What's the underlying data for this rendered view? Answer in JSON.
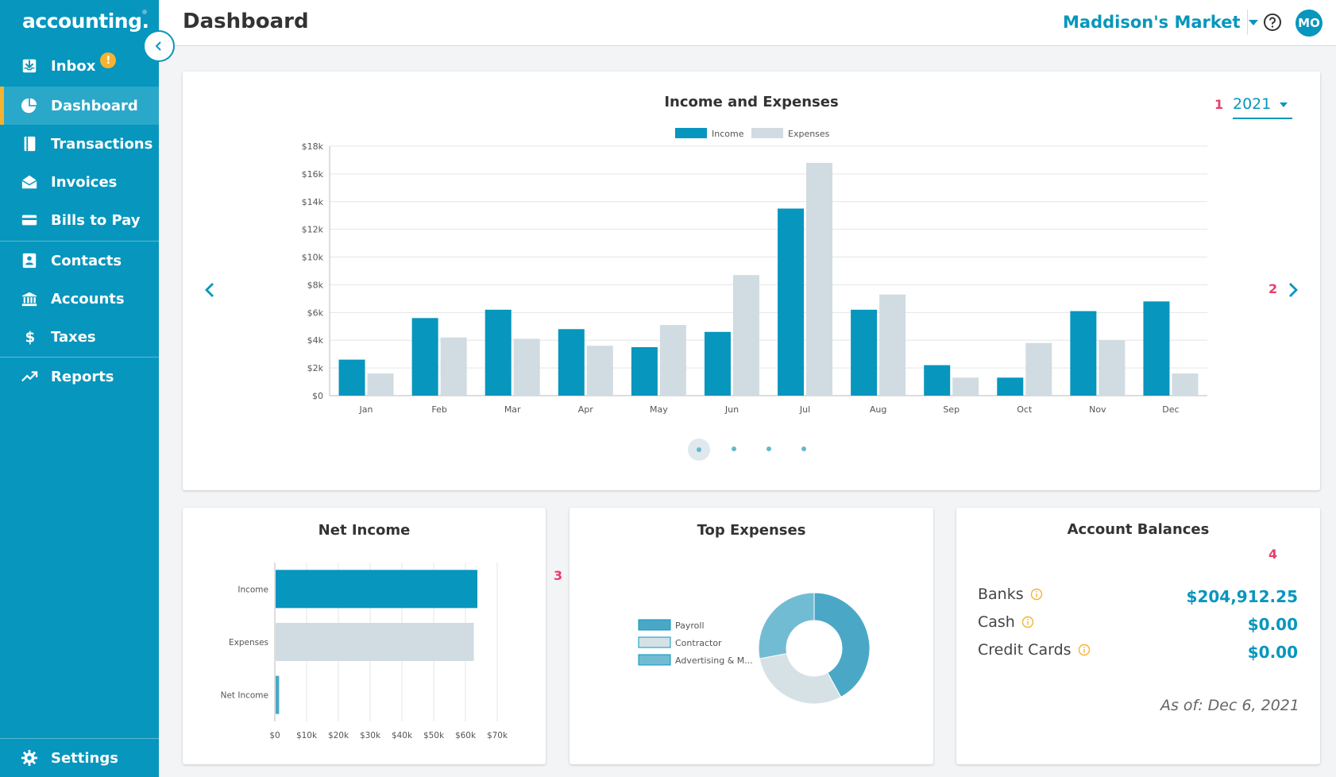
{
  "app": {
    "logo": "accounting",
    "logo_dot": "."
  },
  "sidebar": {
    "items": [
      {
        "label": "Inbox",
        "icon": "inbox-icon",
        "badge": "!"
      },
      {
        "label": "Dashboard",
        "icon": "dashboard-pie-icon"
      },
      {
        "label": "Transactions",
        "icon": "book-icon"
      },
      {
        "label": "Invoices",
        "icon": "envelope-open-icon"
      },
      {
        "label": "Bills to Pay",
        "icon": "credit-card-icon"
      },
      {
        "label": "Contacts",
        "icon": "contacts-icon"
      },
      {
        "label": "Accounts",
        "icon": "bank-icon"
      },
      {
        "label": "Taxes",
        "icon": "dollar-icon"
      },
      {
        "label": "Reports",
        "icon": "trending-up-icon"
      }
    ],
    "settings_label": "Settings",
    "active_item": "Dashboard"
  },
  "header": {
    "title": "Dashboard",
    "company": "Maddison's Market",
    "avatar_initials": "MO"
  },
  "annotations": [
    "1",
    "2",
    "3",
    "4"
  ],
  "income_expenses": {
    "year": "2021",
    "colors": {
      "income": "#0796bd",
      "expenses": "#d0dce1"
    }
  },
  "chart_data": [
    {
      "type": "bar",
      "title": "Income and Expenses",
      "categories": [
        "Jan",
        "Feb",
        "Mar",
        "Apr",
        "May",
        "Jun",
        "Jul",
        "Aug",
        "Sep",
        "Oct",
        "Nov",
        "Dec"
      ],
      "series": [
        {
          "name": "Income",
          "values": [
            2600,
            5600,
            6200,
            4800,
            3500,
            4600,
            13500,
            6200,
            2200,
            1300,
            6100,
            6800
          ]
        },
        {
          "name": "Expenses",
          "values": [
            1600,
            4200,
            4100,
            3600,
            5100,
            8700,
            16800,
            7300,
            1300,
            3800,
            4000,
            1600
          ]
        }
      ],
      "yticks": [
        "$0",
        "$2k",
        "$4k",
        "$6k",
        "$8k",
        "$10k",
        "$12k",
        "$14k",
        "$16k",
        "$18k"
      ],
      "ylim": [
        0,
        18000
      ],
      "legend": "top-center"
    },
    {
      "type": "bar",
      "orientation": "horizontal",
      "title": "Net Income",
      "categories": [
        "Income",
        "Expenses",
        "Net Income"
      ],
      "values": [
        63500,
        62400,
        1100
      ],
      "xticks": [
        "$0",
        "$10k",
        "$20k",
        "$30k",
        "$40k",
        "$50k",
        "$60k",
        "$70k"
      ],
      "xlim": [
        0,
        70000
      ]
    },
    {
      "type": "pie",
      "title": "Top Expenses",
      "labels": [
        "Payroll",
        "Contractor",
        "Advertising & M..."
      ],
      "values": [
        42,
        30,
        28
      ],
      "colors": [
        "#4aa8c6",
        "#d6e1e5",
        "#72bcd3"
      ]
    }
  ],
  "account_balances": {
    "title": "Account Balances",
    "rows": [
      {
        "label": "Banks",
        "value": "$204,912.25"
      },
      {
        "label": "Cash",
        "value": "$0.00"
      },
      {
        "label": "Credit Cards",
        "value": "$0.00"
      }
    ],
    "as_of": "As of: Dec 6, 2021"
  }
}
